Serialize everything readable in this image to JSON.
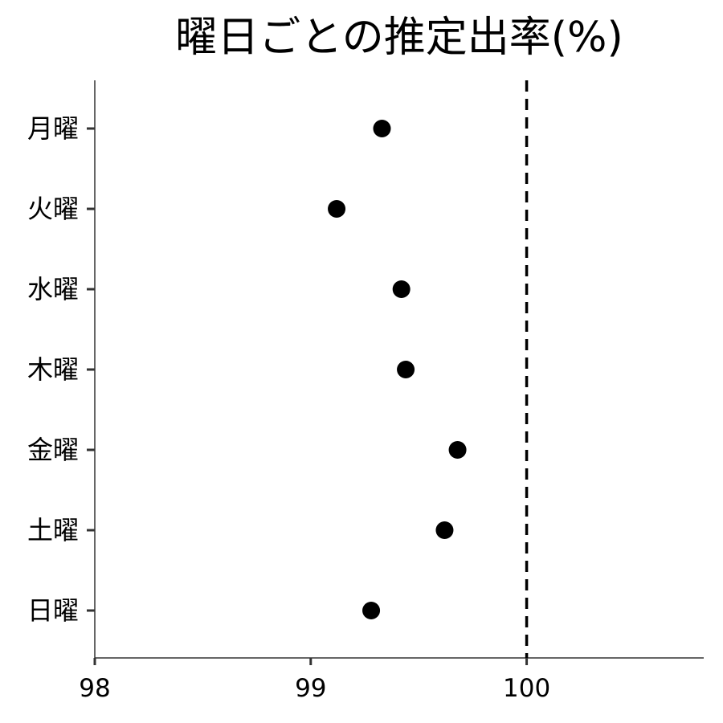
{
  "chart_data": {
    "type": "scatter",
    "title": "曜日ごとの推定出率(%)",
    "xlabel": "",
    "ylabel": "",
    "categories": [
      "月曜",
      "火曜",
      "水曜",
      "木曜",
      "金曜",
      "土曜",
      "日曜"
    ],
    "values": [
      99.33,
      99.12,
      99.42,
      99.44,
      99.68,
      99.62,
      99.28
    ],
    "xlim": [
      98,
      100.82
    ],
    "xticks": [
      98,
      99,
      100
    ],
    "reference_line": {
      "x": 100,
      "style": "dashed"
    },
    "grid": false,
    "legend": "none",
    "colors": {
      "point": "#000000",
      "axis": "#333333",
      "reference": "#000000"
    }
  }
}
